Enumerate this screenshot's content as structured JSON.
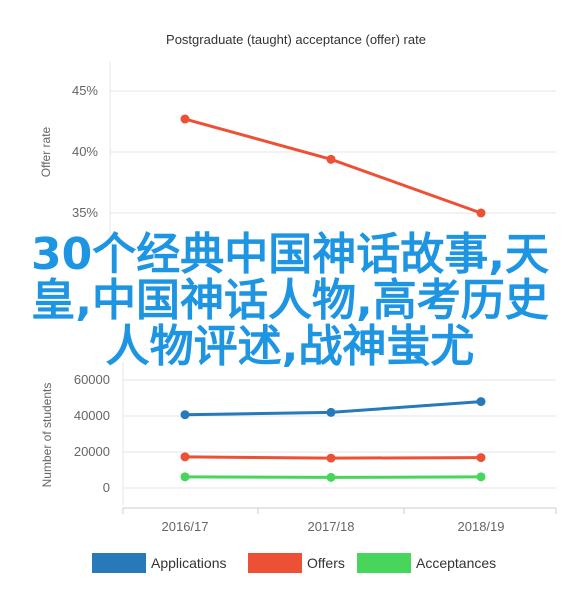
{
  "chart_data": [
    {
      "type": "line",
      "title": "Postgraduate (taught) acceptance (offer) rate",
      "ylabel": "Offer rate",
      "x": [
        "2016/17",
        "2017/18",
        "2018/19"
      ],
      "series": [
        {
          "values": [
            42.7,
            39.4,
            35.0
          ],
          "color": "#ec5035"
        }
      ],
      "y_ticks": [
        "35%",
        "40%",
        "45%"
      ],
      "ylim": [
        35,
        45
      ],
      "grid": true
    },
    {
      "type": "line",
      "ylabel": "Number of students",
      "categories": [
        "2016/17",
        "2017/18",
        "2018/19"
      ],
      "series": [
        {
          "name": "Applications",
          "values": [
            40700,
            42000,
            48000
          ],
          "color": "#2879b9"
        },
        {
          "name": "Offers",
          "values": [
            17300,
            16600,
            16900
          ],
          "color": "#ec5035"
        },
        {
          "name": "Acceptances",
          "values": [
            6200,
            5900,
            6200
          ],
          "color": "#47d65b"
        }
      ],
      "y_ticks": [
        "0",
        "20000",
        "40000",
        "60000"
      ],
      "ylim": [
        0,
        60000
      ],
      "legend": "bottom",
      "grid": true
    }
  ],
  "overlay": {
    "lines": [
      "30个经典中国神话故事,天",
      "皇,中国神话人物,高考历史",
      "人物评述,战神蚩尤"
    ]
  }
}
